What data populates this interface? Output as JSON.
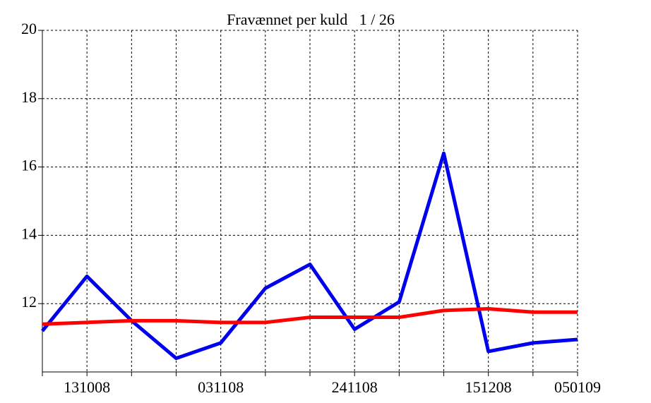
{
  "chart_data": {
    "type": "line",
    "title": "Fravænnet per kuld   1 / 26",
    "categories": [
      null,
      "131008",
      null,
      null,
      "031108",
      null,
      null,
      "241108",
      null,
      null,
      "151208",
      null,
      "050109"
    ],
    "series": [
      {
        "color": "#0000ee",
        "values": [
          11.2,
          12.8,
          11.5,
          10.4,
          10.85,
          12.45,
          13.15,
          11.25,
          12.05,
          16.4,
          10.6,
          10.85,
          10.95
        ]
      },
      {
        "color": "#ff0000",
        "values": [
          11.4,
          11.45,
          11.5,
          11.5,
          11.45,
          11.45,
          11.6,
          11.6,
          11.6,
          11.8,
          11.85,
          11.75,
          11.75
        ]
      }
    ],
    "ylim": [
      10,
      20
    ],
    "yticks": [
      12,
      14,
      16,
      18,
      20
    ],
    "grid": true
  }
}
